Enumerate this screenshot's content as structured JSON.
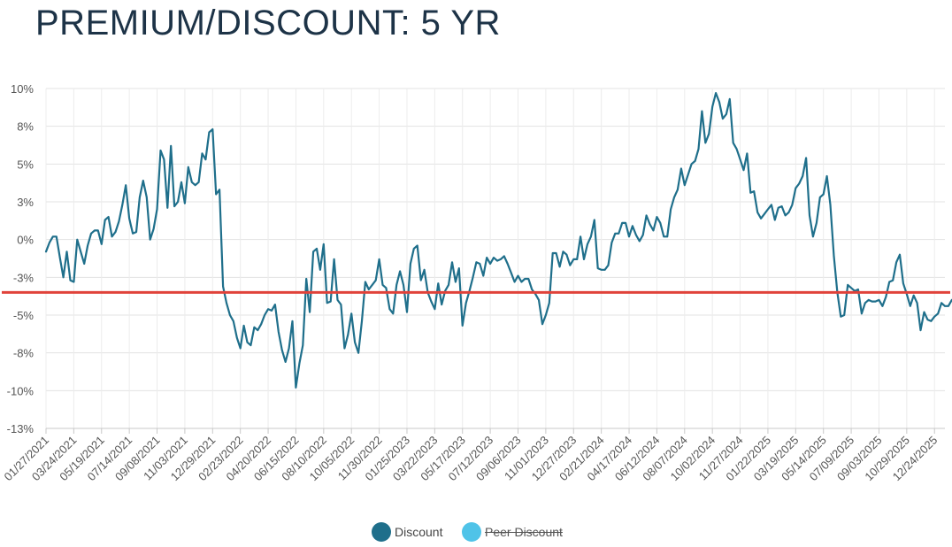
{
  "title": "PREMIUM/DISCOUNT: 5 YR",
  "chart_data": {
    "type": "line",
    "title": "PREMIUM/DISCOUNT: 5 YR",
    "xlabel": "",
    "ylabel": "",
    "ylim": [
      -12.5,
      10
    ],
    "y_ticks": [
      10,
      7.5,
      5,
      2.5,
      0,
      -2.5,
      -5,
      -7.5,
      -10,
      -12.5
    ],
    "y_tick_labels": [
      "10%",
      "8%",
      "5%",
      "3%",
      "0%",
      "-3%",
      "-5%",
      "-8%",
      "-10%",
      "-13%"
    ],
    "x_range": [
      0,
      259
    ],
    "x_ticks": [
      0,
      8,
      16,
      24,
      32,
      40,
      48,
      56,
      64,
      72,
      80,
      88,
      96,
      104,
      112,
      120,
      128,
      136,
      144,
      152,
      160,
      168,
      176,
      184,
      192,
      200,
      208,
      216,
      224,
      232,
      240,
      248,
      256
    ],
    "x_tick_labels": [
      "01/27/2021",
      "03/24/2021",
      "05/19/2021",
      "07/14/2021",
      "09/08/2021",
      "11/03/2021",
      "12/29/2021",
      "02/23/2022",
      "04/20/2022",
      "06/15/2022",
      "08/10/2022",
      "10/05/2022",
      "11/30/2022",
      "01/25/2023",
      "03/22/2023",
      "05/17/2023",
      "07/12/2023",
      "09/06/2023",
      "11/01/2023",
      "12/27/2023",
      "02/21/2024",
      "04/17/2024",
      "06/12/2024",
      "08/07/2024",
      "10/02/2024",
      "11/27/2024",
      "01/22/2025",
      "03/19/2025",
      "05/14/2025",
      "07/09/2025",
      "09/03/2025",
      "10/29/2025",
      "12/24/2025"
    ],
    "grid": true,
    "legend_position": "bottom-center",
    "series": [
      {
        "name": "Discount",
        "color": "#1f6f8b",
        "values": [
          -0.8,
          -0.2,
          0.2,
          0.2,
          -1.2,
          -2.5,
          -0.8,
          -2.7,
          -2.8,
          0.0,
          -0.8,
          -1.6,
          -0.4,
          0.4,
          0.6,
          0.6,
          -0.3,
          1.3,
          1.5,
          0.2,
          0.5,
          1.2,
          2.3,
          3.6,
          1.4,
          0.4,
          0.5,
          2.8,
          3.9,
          2.8,
          0.0,
          0.7,
          2.0,
          5.9,
          5.3,
          2.1,
          6.2,
          2.2,
          2.5,
          3.8,
          2.4,
          4.8,
          3.8,
          3.6,
          3.8,
          5.7,
          5.3,
          7.1,
          7.3,
          3.0,
          3.3,
          -3.1,
          -4.2,
          -5.0,
          -5.4,
          -6.5,
          -7.2,
          -5.7,
          -6.8,
          -7.0,
          -5.8,
          -6.0,
          -5.6,
          -5.0,
          -4.6,
          -4.7,
          -4.3,
          -6.1,
          -7.3,
          -8.1,
          -7.2,
          -5.4,
          -9.8,
          -8.2,
          -7.0,
          -2.6,
          -4.8,
          -0.8,
          -0.6,
          -2.0,
          -0.3,
          -4.2,
          -4.1,
          -1.3,
          -4.0,
          -4.3,
          -7.2,
          -6.3,
          -4.9,
          -6.8,
          -7.5,
          -5.4,
          -2.8,
          -3.3,
          -3.0,
          -2.7,
          -1.3,
          -3.0,
          -3.2,
          -4.6,
          -4.9,
          -3.0,
          -2.1,
          -3.0,
          -4.8,
          -1.6,
          -0.6,
          -0.4,
          -2.7,
          -2.0,
          -3.5,
          -4.1,
          -4.6,
          -2.9,
          -4.3,
          -3.4,
          -3.0,
          -1.5,
          -2.8,
          -1.9,
          -5.7,
          -4.2,
          -3.4,
          -2.5,
          -1.5,
          -1.6,
          -2.4,
          -1.2,
          -1.6,
          -1.2,
          -1.4,
          -1.3,
          -1.1,
          -1.6,
          -2.2,
          -2.8,
          -2.4,
          -2.8,
          -2.6,
          -2.6,
          -3.3,
          -3.6,
          -4.0,
          -5.6,
          -5.0,
          -4.2,
          -0.9,
          -0.9,
          -1.8,
          -0.8,
          -1.0,
          -1.7,
          -1.3,
          -1.3,
          0.2,
          -1.3,
          -0.3,
          0.2,
          1.3,
          -1.9,
          -2.0,
          -2.0,
          -1.7,
          -0.2,
          0.4,
          0.4,
          1.1,
          1.1,
          0.2,
          0.9,
          0.3,
          -0.1,
          0.3,
          1.6,
          1.0,
          0.6,
          1.5,
          1.1,
          0.2,
          0.2,
          2.0,
          2.8,
          3.3,
          4.7,
          3.6,
          4.3,
          5.0,
          5.2,
          6.0,
          8.5,
          6.4,
          7.0,
          8.8,
          9.7,
          9.1,
          8.0,
          8.3,
          9.3,
          6.4,
          6.0,
          5.3,
          4.6,
          5.7,
          3.1,
          3.2,
          1.8,
          1.4,
          1.7,
          2.0,
          2.3,
          1.3,
          2.1,
          2.2,
          1.6,
          1.8,
          2.3,
          3.4,
          3.7,
          4.2,
          5.4,
          1.6,
          0.2,
          1.1,
          2.8,
          3.0,
          4.2,
          2.3,
          -1.1,
          -3.5,
          -5.1,
          -5.0,
          -3.0,
          -3.2,
          -3.4,
          -3.3,
          -4.9,
          -4.2,
          -4.0,
          -4.1,
          -4.1,
          -4.0,
          -4.4,
          -3.8,
          -2.8,
          -2.7,
          -1.5,
          -1.0,
          -2.9,
          -3.6,
          -4.4,
          -3.7,
          -4.2,
          -6.0,
          -4.8,
          -5.3,
          -5.4,
          -5.1,
          -4.9,
          -4.2,
          -4.4,
          -4.4,
          -4.0
        ]
      },
      {
        "name": "Peer Discount",
        "color": "#4fc3e8",
        "hidden": true,
        "values": []
      }
    ],
    "reference_line": {
      "value": -3.5,
      "color": "#e0423a"
    }
  }
}
